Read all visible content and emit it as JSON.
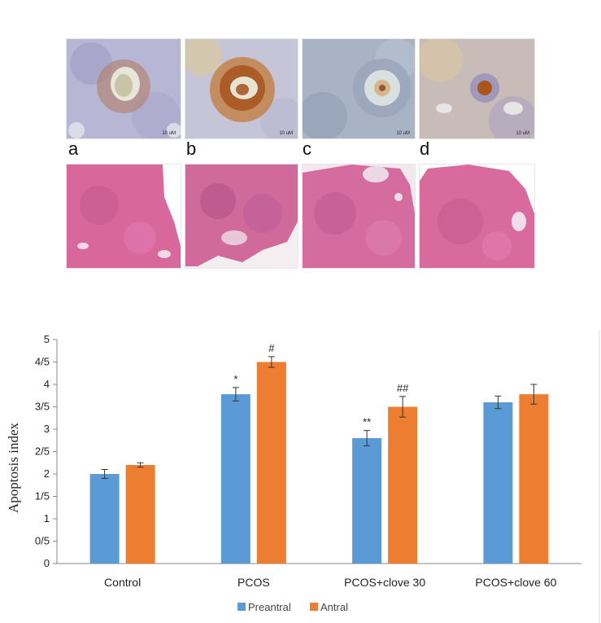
{
  "panels": {
    "letters": [
      "a",
      "b",
      "c",
      "d"
    ],
    "scale_bar": [
      "10 uM",
      "10 uM",
      "10 uM",
      "10 uM"
    ]
  },
  "colors": {
    "preantral": "#5b9bd5",
    "antral": "#ed7d31",
    "ihc_background": "#b9b8d6",
    "he_background": "#d9679d"
  },
  "chart_data": {
    "type": "bar",
    "ylabel": "Apoptosis index",
    "xlabel": "",
    "ylim": [
      0,
      5
    ],
    "yticks": [
      0,
      0.5,
      1,
      1.5,
      2,
      2.5,
      3,
      3.5,
      4,
      4.5,
      5
    ],
    "ytick_labels": [
      "0",
      "0/5",
      "1",
      "1/5",
      "2",
      "2/5",
      "3",
      "3/5",
      "4",
      "4/5",
      "5"
    ],
    "categories": [
      "Control",
      "PCOS",
      "PCOS+clove 30",
      "PCOS+clove 60"
    ],
    "series": [
      {
        "name": "Preantral",
        "color": "#5b9bd5",
        "values": [
          2.0,
          3.78,
          2.8,
          3.6
        ],
        "errors": [
          0.1,
          0.15,
          0.17,
          0.14
        ],
        "annotations": [
          "",
          "*",
          "**",
          ""
        ]
      },
      {
        "name": "Antral",
        "color": "#ed7d31",
        "values": [
          2.2,
          4.5,
          3.5,
          3.78
        ],
        "errors": [
          0.05,
          0.12,
          0.23,
          0.22
        ],
        "annotations": [
          "",
          "#",
          "##",
          ""
        ]
      }
    ],
    "grid": false,
    "legend": "bottom"
  }
}
